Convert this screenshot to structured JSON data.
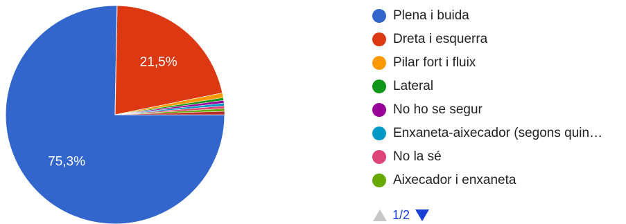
{
  "chart_data": {
    "type": "pie",
    "title": "",
    "slices": [
      {
        "label": "Plena i buida",
        "value": 75.3,
        "color": "#3366cc",
        "data_label": "75,3%"
      },
      {
        "label": "Dreta i esquerra",
        "value": 21.5,
        "color": "#dc3912",
        "data_label": "21,5%"
      },
      {
        "label": "Pilar fort i fluix",
        "value": 0.7,
        "color": "#ff9900",
        "data_label": ""
      },
      {
        "label": "Lateral",
        "value": 0.4,
        "color": "#109618",
        "data_label": ""
      },
      {
        "label": "No ho se segur",
        "value": 0.4,
        "color": "#990099",
        "data_label": ""
      },
      {
        "label": "Enxaneta-aixecador (segons quin…",
        "value": 0.4,
        "color": "#0099c6",
        "data_label": ""
      },
      {
        "label": "No la sé",
        "value": 0.4,
        "color": "#dd4477",
        "data_label": ""
      },
      {
        "label": "Aixecador i enxaneta",
        "value": 0.4,
        "color": "#66aa00",
        "data_label": ""
      },
      {
        "label": "",
        "value": 0.5,
        "color": "#b82e2e",
        "data_label": ""
      }
    ],
    "legend_position": "right"
  },
  "legend": {
    "items": [
      {
        "label": "Plena i buida",
        "color": "#3366cc"
      },
      {
        "label": "Dreta i esquerra",
        "color": "#dc3912"
      },
      {
        "label": "Pilar fort i fluix",
        "color": "#ff9900"
      },
      {
        "label": "Lateral",
        "color": "#109618"
      },
      {
        "label": "No ho se segur",
        "color": "#990099"
      },
      {
        "label": "Enxaneta-aixecador (segons quin…",
        "color": "#0099c6"
      },
      {
        "label": "No la sé",
        "color": "#dd4477"
      },
      {
        "label": "Aixecador i enxaneta",
        "color": "#66aa00"
      }
    ]
  },
  "pager": {
    "text": "1/2",
    "prev_icon": "triangle-up-icon",
    "next_icon": "triangle-down-icon",
    "active_color": "#1a3fd6",
    "disabled_color": "#c8c8c8"
  }
}
